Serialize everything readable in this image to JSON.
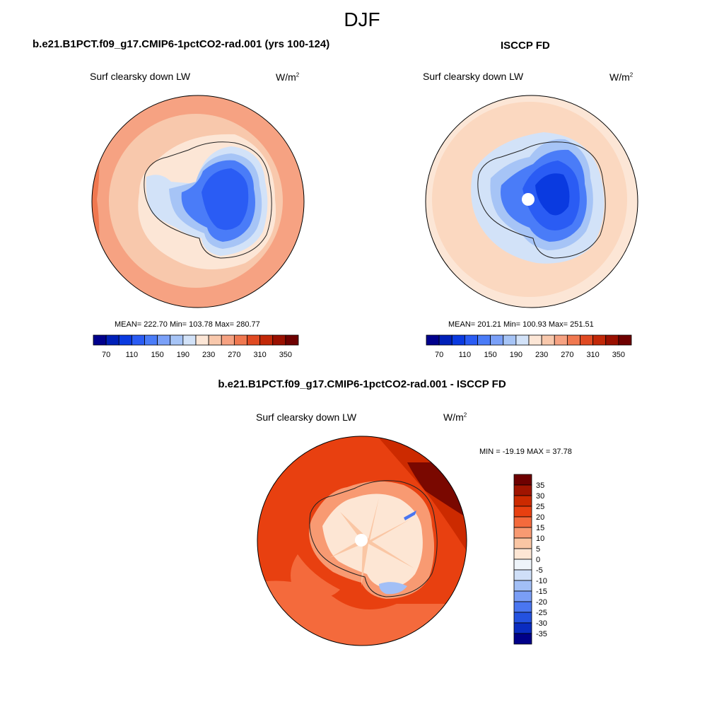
{
  "season": "DJF",
  "panels": [
    {
      "title": "b.e21.B1PCT.f09_g17.CMIP6-1pctCO2-rad.001 (yrs 100-124)",
      "variable": "Surf clearsky down LW",
      "units": "W/m",
      "units_exp": "2",
      "stats": "MEAN= 222.70  Min= 103.78  Max= 280.77"
    },
    {
      "title": "ISCCP FD",
      "variable": "Surf clearsky down LW",
      "units": "W/m",
      "units_exp": "2",
      "stats": "MEAN= 201.21  Min= 100.93  Max= 251.51"
    },
    {
      "title": "b.e21.B1PCT.f09_g17.CMIP6-1pctCO2-rad.001 - ISCCP FD",
      "variable": "Surf clearsky down LW",
      "units": "W/m",
      "units_exp": "2",
      "stats": "MIN = -19.19 MAX =  37.78"
    }
  ],
  "chart_data": [
    {
      "type": "heatmap",
      "projection": "south-polar-stereographic",
      "title": "b.e21.B1PCT.f09_g17.CMIP6-1pctCO2-rad.001 (yrs 100-124)",
      "variable": "Surf clearsky down LW",
      "units": "W/m2",
      "mean": 222.7,
      "min": 103.78,
      "max": 280.77,
      "colorbar": {
        "orientation": "horizontal",
        "levels": [
          70,
          90,
          110,
          130,
          150,
          170,
          190,
          210,
          230,
          250,
          270,
          290,
          310,
          330,
          350
        ],
        "tick_labels": [
          "70",
          "110",
          "150",
          "190",
          "230",
          "270",
          "310",
          "350"
        ],
        "colors": [
          "#00008c",
          "#0020b8",
          "#0a3ae0",
          "#2a5cf4",
          "#4a7cf8",
          "#7aa0f8",
          "#a6c4f6",
          "#d2e2f8",
          "#fce6d6",
          "#f8c8ac",
          "#f6a282",
          "#f07850",
          "#e04a22",
          "#c22808",
          "#9a1000",
          "#6e0000"
        ]
      }
    },
    {
      "type": "heatmap",
      "projection": "south-polar-stereographic",
      "title": "ISCCP FD",
      "variable": "Surf clearsky down LW",
      "units": "W/m2",
      "mean": 201.21,
      "min": 100.93,
      "max": 251.51,
      "colorbar": {
        "orientation": "horizontal",
        "levels": [
          70,
          90,
          110,
          130,
          150,
          170,
          190,
          210,
          230,
          250,
          270,
          290,
          310,
          330,
          350
        ],
        "tick_labels": [
          "70",
          "110",
          "150",
          "190",
          "230",
          "270",
          "310",
          "350"
        ],
        "colors": [
          "#00008c",
          "#0020b8",
          "#0a3ae0",
          "#2a5cf4",
          "#4a7cf8",
          "#7aa0f8",
          "#a6c4f6",
          "#d2e2f8",
          "#fce6d6",
          "#f8c8ac",
          "#f6a282",
          "#f07850",
          "#e04a22",
          "#c22808",
          "#9a1000",
          "#6e0000"
        ]
      }
    },
    {
      "type": "heatmap",
      "projection": "south-polar-stereographic",
      "title": "b.e21.B1PCT.f09_g17.CMIP6-1pctCO2-rad.001 - ISCCP FD",
      "variable": "Surf clearsky down LW",
      "units": "W/m2",
      "min": -19.19,
      "max": 37.78,
      "colorbar": {
        "orientation": "vertical",
        "tick_labels": [
          "35",
          "30",
          "25",
          "20",
          "15",
          "10",
          "5",
          "0",
          "-5",
          "-10",
          "-15",
          "-20",
          "-25",
          "-30",
          "-35"
        ],
        "colors": [
          "#6e0000",
          "#a01400",
          "#cc2a00",
          "#e84010",
          "#f46a3c",
          "#f89a72",
          "#fac6a4",
          "#fde6d4",
          "#eef4fa",
          "#cfdff8",
          "#a2bff6",
          "#7a9ef6",
          "#4a76f0",
          "#2452e0",
          "#0a2cc0",
          "#000088"
        ]
      }
    }
  ]
}
